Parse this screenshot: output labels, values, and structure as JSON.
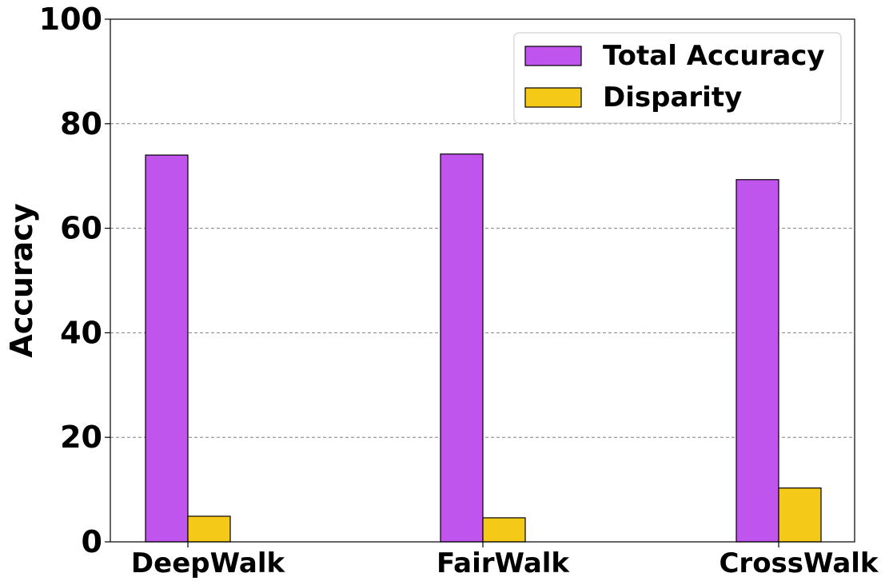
{
  "chart_data": {
    "type": "bar",
    "title": "",
    "xlabel": "",
    "ylabel": "Accuracy",
    "ylim": [
      0,
      100
    ],
    "yticks": [
      0,
      20,
      40,
      60,
      80,
      100
    ],
    "grid": "y-dashed",
    "legend_placement": "top-right",
    "categories": [
      "DeepWalk",
      "FairWalk",
      "CrossWalk"
    ],
    "series": [
      {
        "name": "Total Accuracy",
        "color": "#bf55ec",
        "values": [
          74.0,
          74.2,
          69.3
        ]
      },
      {
        "name": "Disparity",
        "color": "#f5c918",
        "values": [
          4.9,
          4.6,
          10.3
        ]
      }
    ]
  }
}
